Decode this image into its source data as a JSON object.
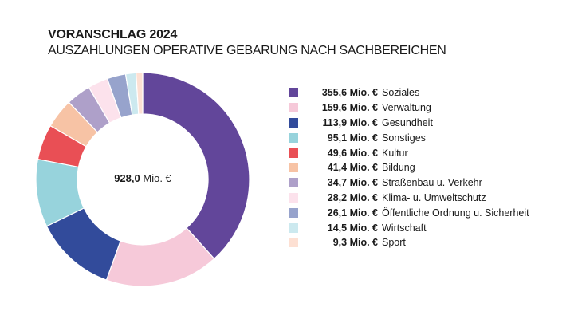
{
  "chart_data": {
    "type": "pie",
    "subtype": "donut",
    "title": "VORANSCHLAG 2024",
    "subtitle": "AUSZAHLUNGEN OPERATIVE GEBARUNG NACH SACHBEREICHEN",
    "center_label": {
      "value": "928,0",
      "unit": "Mio. €"
    },
    "legend_position": "right",
    "unit": "Mio. €",
    "series": [
      {
        "name": "Soziales",
        "value": 355.6,
        "label": "355,6 Mio. €",
        "color": "#62469a"
      },
      {
        "name": "Verwaltung",
        "value": 159.6,
        "label": "159,6 Mio. €",
        "color": "#f6c9d9"
      },
      {
        "name": "Gesundheit",
        "value": 113.9,
        "label": "113,9 Mio. €",
        "color": "#324b9b"
      },
      {
        "name": "Sonstiges",
        "value": 95.1,
        "label": "95,1 Mio. €",
        "color": "#97d3dc"
      },
      {
        "name": "Kultur",
        "value": 49.6,
        "label": "49,6 Mio. €",
        "color": "#e94f55"
      },
      {
        "name": "Bildung",
        "value": 41.4,
        "label": "41,4 Mio. €",
        "color": "#f7c3a5"
      },
      {
        "name": "Straßenbau u. Verkehr",
        "value": 34.7,
        "label": "34,7 Mio. €",
        "color": "#aea0c9"
      },
      {
        "name": "Klima- u. Umweltschutz",
        "value": 28.2,
        "label": "28,2 Mio. €",
        "color": "#fce2ec"
      },
      {
        "name": "Öffentliche Ordnung u. Sicherheit",
        "value": 26.1,
        "label": "26,1 Mio. €",
        "color": "#97a3cc"
      },
      {
        "name": "Wirtschaft",
        "value": 14.5,
        "label": "14,5 Mio. €",
        "color": "#cce9ef"
      },
      {
        "name": "Sport",
        "value": 9.3,
        "label": "9,3 Mio. €",
        "color": "#fde0d3"
      }
    ]
  }
}
